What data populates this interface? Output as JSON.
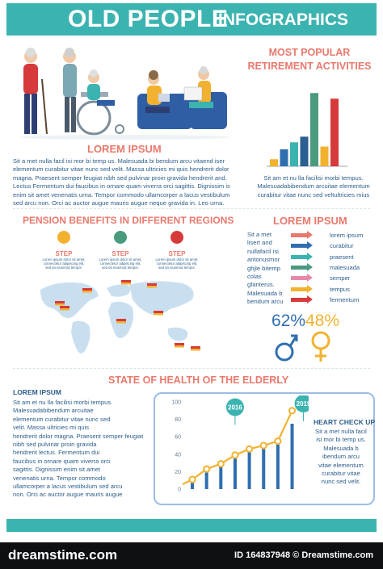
{
  "header": {
    "title": "OLD PEOPLE",
    "subtitle": "INFOGRAPHICS"
  },
  "popular": {
    "title_line1": "MOST POPULAR",
    "title_line2": "RETIREMENT ACTIVITIES",
    "caption": [
      "Sit am et nu  lla facilisi morbi tempus.",
      "Malesuadabibendum  arcuitae elementum",
      "curabitur vitae nunc sed veltultricies mius"
    ]
  },
  "lorem1": {
    "title": "LOREM IPSUM",
    "lines": [
      "Sit a met nulla facil isi mor bi temp us.   Malesuada  bi bendum arcu vitaend iser",
      "elementum curabitur vitae nunc sed velit. Massa ultricies mi quis hendrerit dolor",
      "magna. Praesent semper feugiat nibh sed pulvinar proin gravida hendrerit and.",
      "Lectus Fermentum dui faucibus in ornare quam viverra orci sagittis. Dignissim is",
      "enim sit amet venenatis urna. Tempor commodo ullamcorper a lacus vestibulum",
      "sed arcu non. Orci ac auctor augue mauris augue neque gravida in. Leo urna."
    ]
  },
  "pension": {
    "title": "PENSION BENEFITS IN DIFFERENT REGIONS",
    "steps": [
      {
        "label": "STEP",
        "color": "#f2b230",
        "text": [
          "Lorem ipsum dolor sit amet,",
          "connectetur adipiscing elit,",
          "sed do eiusmod tempor."
        ]
      },
      {
        "label": "STEP",
        "color": "#4a9b7e",
        "text": [
          "Lorem ipsum dolor sit amet,",
          "connectetur adipiscing elit,",
          "sed do eiusmod tempor."
        ]
      },
      {
        "label": "STEP",
        "color": "#d63a3a",
        "text": [
          "Lorem ipsum dolor sit amet,",
          "connectetur adipiscing elit,",
          "sed do eiusmod tempor."
        ]
      }
    ]
  },
  "lorem2": {
    "title": "LOREM IPSUM",
    "left_text": [
      "Sit a met",
      "lisert  and",
      "nullafacil  isi",
      "antonusmor",
      "ghjle bitemp",
      "colas",
      "gfanterus.",
      "Malesuada b",
      "bendum arcu"
    ],
    "legend": [
      {
        "label": "lorem ipsum",
        "color": "#e8796d"
      },
      {
        "label": "curabitur",
        "color": "#2f6fb0"
      },
      {
        "label": "praesent",
        "color": "#3bb3b0"
      },
      {
        "label": "malesuada",
        "color": "#4a9b7e"
      },
      {
        "label": "semper",
        "color": "#e68aa8"
      },
      {
        "label": "tempus",
        "color": "#f2b230"
      },
      {
        "label": "fermentum",
        "color": "#d63a3a"
      }
    ],
    "male_pct": "62%",
    "female_pct": "48%",
    "male_color": "#2f6fb0",
    "female_color": "#f2b230"
  },
  "health": {
    "title": "STATE OF HEALTH OF THE ELDERLY",
    "left_title": "LOREM IPSUM",
    "left_lines": [
      "Sit  am et nu  lla facilisi morbi tempus.",
      "Malesuadabibendum  arcuitae",
      "elementum curabitur vitae nunc sed",
      "velit. Massa ultricies mi quis",
      "hendrerit dolor magna. Praesent semper feugiat",
      "nibh sed pulvinar proin gravida",
      "hendrerit lectus. Fermentum dui",
      "faucibus in ornare quam viverra orci",
      "sagittis. Dignissim enim sit amet",
      "venenatis urna. Tempor commodo",
      "ullamcorper a lacus vestibulum sed arcu",
      "non. Orci ac auctor augue mauris augue"
    ],
    "badge_2016": "2016",
    "badge_2019": "2019",
    "check_title": "HEART CHECK UP",
    "check_lines": [
      "Sit a met nulla facil",
      "isi mor bi temp us.",
      "Malesuada b",
      "ibendum arcu",
      "vitae elementum",
      "curabitur vitae",
      "nunc sed velit."
    ]
  },
  "footer": {
    "brand": "dreamstime.com",
    "id_text": "ID 164837948 © Dreamstime.com"
  },
  "chart_data": [
    {
      "type": "bar",
      "title": "MOST POPULAR RETIREMENT ACTIVITIES",
      "values": [
        5,
        12,
        17,
        21,
        52,
        14,
        48
      ],
      "colors": [
        "#f2b230",
        "#2f6fb0",
        "#3bb3b0",
        "#2a5f93",
        "#4a9b7e",
        "#f2b230",
        "#d63a3a"
      ]
    },
    {
      "type": "bar+line",
      "title": "STATE OF HEALTH OF THE ELDERLY",
      "y_ticks": [
        0,
        20,
        40,
        60,
        80,
        100
      ],
      "ylim": [
        0,
        100
      ],
      "bars": [
        11,
        20,
        31,
        40,
        49,
        51,
        54,
        75
      ],
      "line": [
        11,
        23,
        29,
        39,
        46,
        50,
        55,
        90
      ],
      "bar_color": "#2f6fb0",
      "line_color": "#f2b230"
    }
  ]
}
